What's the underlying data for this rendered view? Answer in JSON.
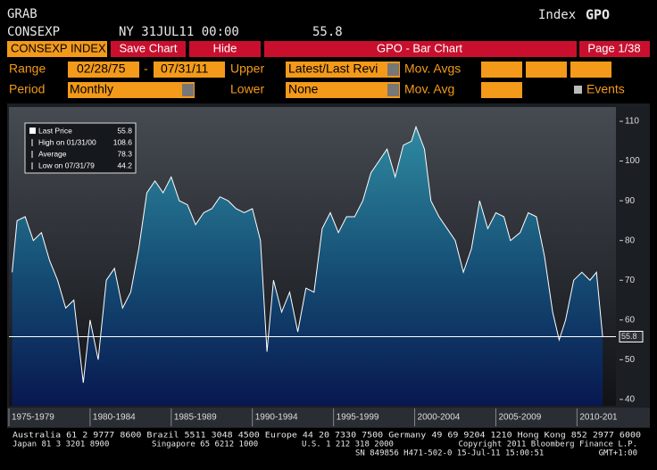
{
  "header": {
    "line1": "GRAB",
    "line2": "CONSEXP",
    "timestamp": "NY 31JUL11 00:00",
    "price": 55.8,
    "index_label": "Index",
    "function": "GPO"
  },
  "toolbar": {
    "security": "CONSEXP INDEX",
    "save": "Save Chart",
    "hide": "Hide",
    "title": "GPO - Bar Chart",
    "page": "Page 1/38"
  },
  "controls": {
    "range_label": "Range",
    "start": "02/28/75",
    "dash": "-",
    "end": "07/31/11",
    "upper_label": "Upper",
    "upper": "Latest/Last Revi",
    "mov_avgs_label": "Mov. Avgs",
    "period_label": "Period",
    "period": "Monthly",
    "lower_label": "Lower",
    "lower": "None",
    "mov_avg_label": "Mov. Avg",
    "events": "Events"
  },
  "chart_data": {
    "type": "area",
    "color": "#ffffff",
    "x": [
      1975.2,
      1975.5,
      1976.0,
      1976.5,
      1977.0,
      1977.5,
      1978.0,
      1978.5,
      1979.0,
      1979.58,
      1980.0,
      1980.5,
      1981.0,
      1981.5,
      1982.0,
      1982.5,
      1983.0,
      1983.5,
      1984.0,
      1984.5,
      1985.0,
      1985.5,
      1986.0,
      1986.5,
      1987.0,
      1987.5,
      1988.0,
      1988.5,
      1989.0,
      1989.5,
      1990.0,
      1990.5,
      1990.9,
      1991.3,
      1991.8,
      1992.3,
      1992.8,
      1993.3,
      1993.8,
      1994.3,
      1994.8,
      1995.3,
      1995.8,
      1996.3,
      1996.8,
      1997.3,
      1997.8,
      1998.3,
      1998.8,
      1999.3,
      1999.8,
      2000.08,
      2000.6,
      2001.0,
      2001.5,
      2002.0,
      2002.5,
      2003.0,
      2003.5,
      2004.0,
      2004.5,
      2005.0,
      2005.5,
      2005.9,
      2006.5,
      2007.0,
      2007.5,
      2008.0,
      2008.5,
      2008.9,
      2009.3,
      2009.8,
      2010.3,
      2010.8,
      2011.2,
      2011.58
    ],
    "values": [
      72,
      85,
      86,
      80,
      82,
      75,
      70,
      63,
      65,
      44.2,
      60,
      50,
      70,
      73,
      63,
      67,
      78,
      92,
      95,
      92,
      96,
      90,
      89,
      84,
      87,
      88,
      91,
      90,
      88,
      87,
      88,
      80,
      52,
      70,
      62,
      67,
      57,
      68,
      67,
      83,
      87,
      82,
      86,
      86,
      90,
      97,
      100,
      103,
      96,
      104,
      105,
      108.6,
      103,
      90,
      86,
      83,
      80,
      72,
      78,
      90,
      83,
      87,
      86,
      80,
      82,
      87,
      86,
      76,
      62,
      55,
      60,
      70,
      72,
      70,
      72,
      55.8
    ],
    "xlim": [
      1975,
      2012.4
    ],
    "ylim": [
      38.4,
      113.6
    ],
    "yticks": [
      40,
      50,
      60,
      70,
      80,
      90,
      100,
      110
    ],
    "xticks": [
      {
        "value": 1975,
        "label": "1975-1979"
      },
      {
        "value": 1980,
        "label": "1980-1984"
      },
      {
        "value": 1985,
        "label": "1985-1989"
      },
      {
        "value": 1990,
        "label": "1990-1994"
      },
      {
        "value": 1995,
        "label": "1995-1999"
      },
      {
        "value": 2000,
        "label": "2000-2004"
      },
      {
        "value": 2005,
        "label": "2005-2009"
      },
      {
        "value": 2010,
        "label": "2010-201"
      }
    ],
    "legend_stats": [
      {
        "label": "Last Price",
        "value": 55.8
      },
      {
        "label": "High on 01/31/00",
        "value": 108.6
      },
      {
        "label": "Average",
        "value": 78.3
      },
      {
        "label": "Low on 07/31/79",
        "value": 44.2
      }
    ]
  },
  "footer": {
    "contacts": "Australia 61 2 9777 8600 Brazil 5511 3048 4500 Europe 44 20 7330 7500 Germany 49 69 9204 1210 Hong Kong 852 2977 6000",
    "japan": "Japan 81 3 3201 8900",
    "singapore": "Singapore 65 6212 1000",
    "us": "U.S. 1 212 318 2000",
    "copyright": "Copyright 2011 Bloomberg Finance L.P.",
    "serial": "SN 849856 H471-502-0 15-Jul-11 15:00:51",
    "timezone": "GMT+1:00"
  }
}
